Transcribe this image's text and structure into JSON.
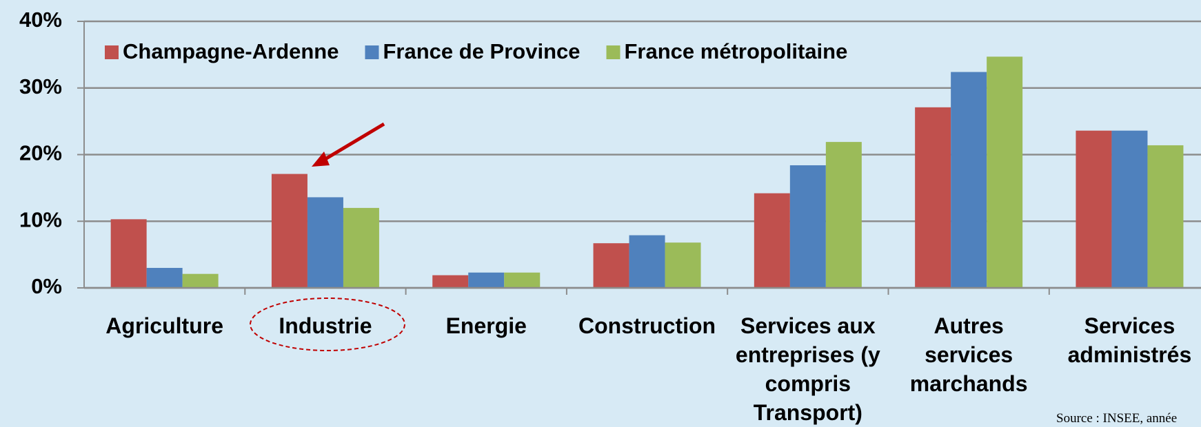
{
  "chart_data": {
    "type": "bar",
    "categories": [
      "Agriculture",
      "Industrie",
      "Energie",
      "Construction",
      "Services aux entreprises (y compris Transport)",
      "Autres services marchands",
      "Services administrés"
    ],
    "series": [
      {
        "name": "Champagne-Ardenne",
        "color": "#c0504d",
        "values": [
          10.3,
          17.1,
          1.9,
          6.7,
          14.2,
          27.1,
          23.6
        ]
      },
      {
        "name": "France de Province",
        "color": "#4f81bd",
        "values": [
          3.0,
          13.6,
          2.3,
          7.9,
          18.4,
          32.4,
          23.6
        ]
      },
      {
        "name": "France métropolitaine",
        "color": "#9bbb59",
        "values": [
          2.1,
          12.0,
          2.3,
          6.8,
          21.9,
          34.7,
          21.4
        ]
      }
    ],
    "ylim": [
      0,
      40
    ],
    "yticks": [
      {
        "value": 0,
        "label": "0%"
      },
      {
        "value": 10,
        "label": "10%"
      },
      {
        "value": 20,
        "label": "20%"
      },
      {
        "value": 30,
        "label": "30%"
      },
      {
        "value": 40,
        "label": "40%"
      }
    ],
    "grid": true,
    "legend": "top",
    "source": "Source : INSEE, année"
  }
}
